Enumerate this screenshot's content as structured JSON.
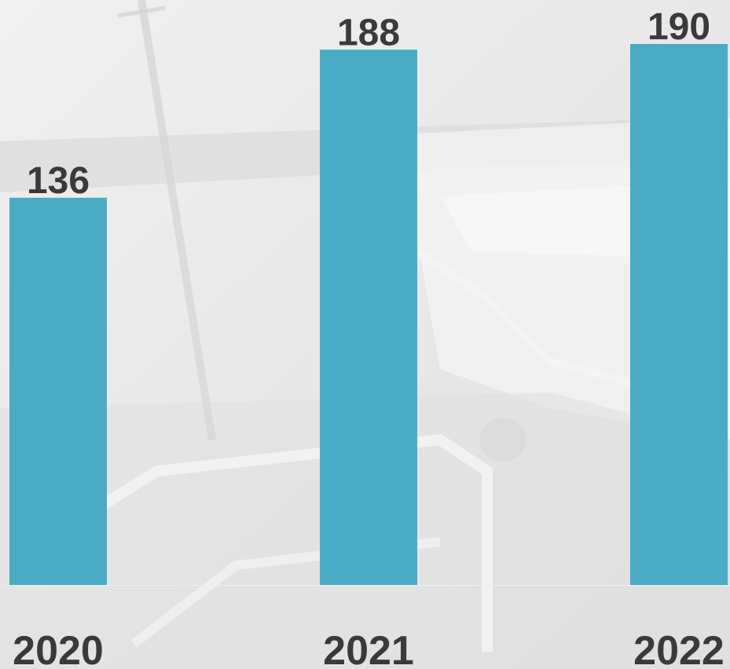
{
  "colors": {
    "bar": "#4AABC5",
    "label": "#3A3A3A",
    "background": "#E4E4E4"
  },
  "chart_data": {
    "type": "bar",
    "categories": [
      "2020",
      "2021",
      "2022"
    ],
    "values": [
      136,
      188,
      190
    ],
    "title": "",
    "xlabel": "",
    "ylabel": "",
    "ylim": [
      0,
      190
    ],
    "grid": false,
    "data_labels": true,
    "legend": "none"
  }
}
